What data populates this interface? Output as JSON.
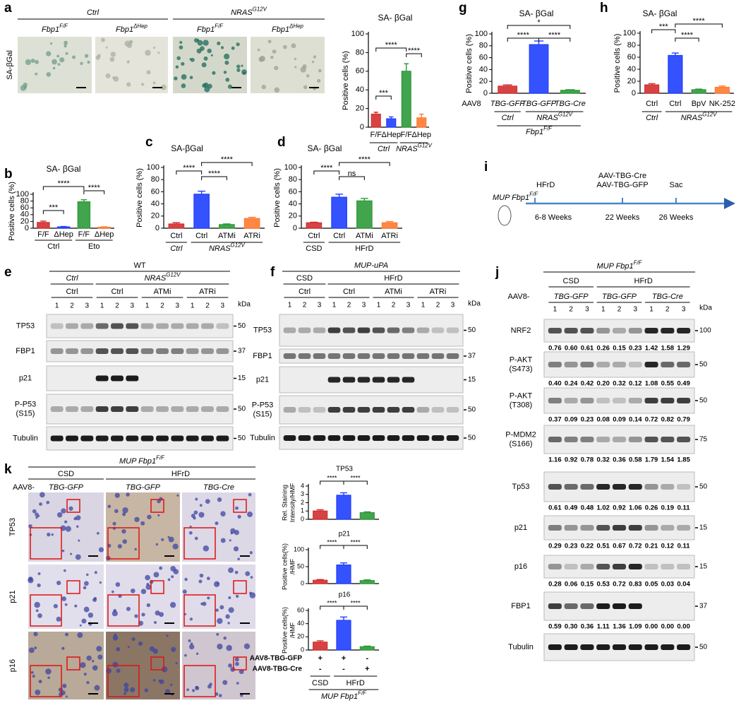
{
  "chart_data": [
    {
      "type": "bar",
      "title": "SA- βGal",
      "ylabel": [
        "Positive cells (%)"
      ],
      "categories": [
        "F/F",
        "ΔHep",
        "F/F",
        "ΔHep"
      ],
      "values": [
        14,
        9,
        60,
        10
      ],
      "errors": [
        2,
        2,
        8,
        4
      ],
      "colors": [
        "#d32f2f",
        "#1f3fff",
        "#2e9a3a",
        "#ff7a30"
      ],
      "ylim": [
        0,
        100
      ],
      "yticks": [
        0,
        20,
        40,
        60,
        80,
        100
      ],
      "groups": [
        {
          "text": "Ctrl",
          "italic": true
        },
        {
          "text": "NRAS",
          "sup": "G12V",
          "italic": true
        }
      ],
      "significance": [
        "****",
        "****",
        "***"
      ]
    },
    {
      "type": "bar",
      "title": "SA- βGal",
      "ylabel": [
        "Positive cells (%)"
      ],
      "categories": [
        "F/F",
        "ΔHep",
        "F/F",
        "ΔHep"
      ],
      "values": [
        17,
        4,
        78,
        3
      ],
      "errors": [
        4,
        1,
        6,
        1
      ],
      "colors": [
        "#d32f2f",
        "#1f3fff",
        "#2e9a3a",
        "#ff7a30"
      ],
      "ylim": [
        0,
        100
      ],
      "yticks": [
        0,
        20,
        40,
        60,
        80,
        100
      ],
      "groups": [
        "Ctrl",
        "Eto"
      ],
      "significance": [
        "****",
        "***",
        "****"
      ]
    },
    {
      "type": "bar",
      "title": "SA-βGal",
      "ylabel": [
        "Positive cells (%)"
      ],
      "categories": [
        "Ctrl",
        "Ctrl",
        "ATMi",
        "ATRi"
      ],
      "values": [
        7,
        56,
        6,
        16
      ],
      "errors": [
        2,
        5,
        1,
        2
      ],
      "colors": [
        "#d32f2f",
        "#1f3fff",
        "#2e9a3a",
        "#ff7a30"
      ],
      "ylim": [
        0,
        100
      ],
      "yticks": [
        0,
        20,
        40,
        60,
        80,
        100
      ],
      "groups": [
        {
          "text": "Ctrl",
          "italic": true
        },
        {
          "text": "NRAS",
          "sup": "G12V",
          "italic": true
        }
      ],
      "significance": [
        "****",
        "****",
        "****"
      ]
    },
    {
      "type": "bar",
      "title": "SA- βGal",
      "ylabel": [
        "Positive cells (%)"
      ],
      "categories": [
        "Ctrl",
        "Ctrl",
        "ATMi",
        "ATRi"
      ],
      "values": [
        9,
        51,
        45,
        9
      ],
      "errors": [
        1,
        5,
        4,
        2
      ],
      "colors": [
        "#d32f2f",
        "#1f3fff",
        "#2e9a3a",
        "#ff7a30"
      ],
      "ylim": [
        0,
        100
      ],
      "yticks": [
        0,
        20,
        40,
        60,
        80,
        100
      ],
      "groups": [
        "CSD",
        "HFrD"
      ],
      "significance": [
        "****",
        "ns",
        "****"
      ]
    },
    {
      "type": "bar",
      "title": "SA- βGal",
      "ylabel": [
        "Positive cells (%)"
      ],
      "row_label": "AAV8",
      "categories": [
        "TBG-GFP",
        "TBG-GFP",
        "TBG-Cre"
      ],
      "italic_categories": true,
      "values": [
        12,
        82,
        5
      ],
      "errors": [
        2,
        6,
        1
      ],
      "colors": [
        "#d32f2f",
        "#1f3fff",
        "#2e9a3a"
      ],
      "ylim": [
        0,
        100
      ],
      "yticks": [
        0,
        20,
        40,
        60,
        80,
        100
      ],
      "groups": [
        {
          "text": "Ctrl",
          "italic": true
        },
        {
          "text": "NRAS",
          "sup": "G12V",
          "italic": true
        }
      ],
      "genotype": {
        "text": "Fbp1",
        "sup": "F/F",
        "italic": true
      },
      "significance": [
        "*",
        "****",
        "****"
      ]
    },
    {
      "type": "bar",
      "title": "SA- βGal",
      "ylabel": [
        "Positive cells (%)"
      ],
      "categories": [
        "Ctrl",
        "Ctrl",
        "BpV",
        "NK-252"
      ],
      "values": [
        14,
        63,
        6,
        10
      ],
      "errors": [
        2,
        4,
        1,
        2
      ],
      "colors": [
        "#d32f2f",
        "#1f3fff",
        "#2e9a3a",
        "#ff7a30"
      ],
      "ylim": [
        0,
        100
      ],
      "yticks": [
        0,
        20,
        40,
        60,
        80,
        100
      ],
      "groups": [
        {
          "text": "Ctrl",
          "italic": true
        },
        {
          "text": "NRAS",
          "sup": "G12V",
          "italic": true
        }
      ],
      "significance": [
        "***",
        "****",
        "****"
      ]
    },
    {
      "type": "bar",
      "title": "TP53",
      "ylabel": [
        "Rel. Staining",
        "Intensity/HMF"
      ],
      "categories": [
        null,
        null,
        null
      ],
      "values": [
        1,
        2.9,
        0.8
      ],
      "errors": [
        0.15,
        0.3,
        0.1
      ],
      "colors": [
        "#d32f2f",
        "#1f3fff",
        "#2e9a3a"
      ],
      "ylim": [
        0,
        4
      ],
      "yticks": [
        0,
        1,
        2,
        3,
        4
      ],
      "significance": [
        "****",
        "****"
      ]
    },
    {
      "type": "bar",
      "title": "p21",
      "ylabel": [
        "Positive cells(%)",
        "/HMF"
      ],
      "categories": [
        null,
        null,
        null
      ],
      "values": [
        10,
        55,
        9
      ],
      "errors": [
        2,
        6,
        2
      ],
      "colors": [
        "#d32f2f",
        "#1f3fff",
        "#2e9a3a"
      ],
      "ylim": [
        0,
        100
      ],
      "yticks": [
        0,
        50,
        100
      ],
      "significance": [
        "****",
        "****"
      ]
    },
    {
      "type": "bar",
      "title": "p16",
      "ylabel": [
        "Positive cells(%)",
        "/HMF"
      ],
      "categories": [
        null,
        null,
        null
      ],
      "values": [
        12,
        45,
        5
      ],
      "errors": [
        2,
        5,
        1
      ],
      "colors": [
        "#d32f2f",
        "#1f3fff",
        "#2e9a3a"
      ],
      "ylim": [
        0,
        60
      ],
      "yticks": [
        0,
        20,
        40,
        60
      ],
      "significance": [
        "****",
        "****"
      ]
    }
  ],
  "panels": {
    "a": {
      "letter": "a",
      "row_label": "SA-βGal",
      "groups": [
        {
          "text": "Ctrl",
          "italic": true
        },
        {
          "text": "NRAS",
          "sup": "G12V",
          "italic": true
        }
      ],
      "genotypes": [
        {
          "text": "Fbp1",
          "sup": "F/F",
          "italic": true
        },
        {
          "text": "Fbp1",
          "sup": "ΔHep",
          "italic": true
        },
        {
          "text": "Fbp1",
          "sup": "F/F",
          "italic": true
        },
        {
          "text": "Fbp1",
          "sup": "ΔHep",
          "italic": true
        }
      ]
    },
    "b": {
      "letter": "b"
    },
    "c": {
      "letter": "c"
    },
    "d": {
      "letter": "d"
    },
    "e": {
      "letter": "e",
      "title": "WT",
      "groups": [
        {
          "text": "Ctrl",
          "italic": true
        },
        {
          "text": "NRAS",
          "sup": "G12V",
          "italic": true
        }
      ],
      "treatments": [
        "Ctrl",
        "Ctrl",
        "ATMi",
        "ATRi"
      ],
      "lanes": [
        1,
        2,
        3
      ],
      "kda_label": "kDa",
      "rows": [
        {
          "label": [
            "TP53"
          ],
          "kda": 50
        },
        {
          "label": [
            "FBP1"
          ],
          "kda": 37
        },
        {
          "label": [
            "p21"
          ],
          "kda": 15
        },
        {
          "label": [
            "P-P53",
            "(S15)"
          ],
          "kda": 50
        },
        {
          "label": [
            "Tubulin"
          ],
          "kda": 50
        }
      ]
    },
    "f": {
      "letter": "f",
      "title": {
        "text": "MUP-uPA",
        "italic": true
      },
      "groups": [
        "CSD",
        "HFrD"
      ],
      "treatments": [
        "Ctrl",
        "Ctrl",
        "ATMi",
        "ATRi"
      ],
      "lanes": [
        1,
        2,
        3
      ],
      "kda_label": "kDa",
      "rows": [
        {
          "label": [
            "TP53"
          ],
          "kda": 50
        },
        {
          "label": [
            "FBP1"
          ],
          "kda": 37
        },
        {
          "label": [
            "p21"
          ],
          "kda": 15
        },
        {
          "label": [
            "P-P53",
            "(S15)"
          ],
          "kda": 50
        },
        {
          "label": [
            "Tubulin"
          ],
          "kda": 50
        }
      ]
    },
    "g": {
      "letter": "g"
    },
    "h": {
      "letter": "h"
    },
    "i": {
      "letter": "i",
      "strain": {
        "text": "MUP Fbp1",
        "sup": "F/F",
        "italic": true
      },
      "events": [
        {
          "top": [
            "HFrD"
          ],
          "bottom": "6-8 Weeks"
        },
        {
          "top": [
            "AAV-TBG-Cre",
            "AAV-TBG-GFP"
          ],
          "bottom": "22 Weeks"
        },
        {
          "top": [
            "Sac"
          ],
          "bottom": "26 Weeks"
        }
      ]
    },
    "j": {
      "letter": "j",
      "title": {
        "text": "MUP Fbp1",
        "sup": "F/F",
        "italic": true
      },
      "conditions": [
        "CSD",
        "HFrD"
      ],
      "vector": "AAV8-",
      "treatments": [
        {
          "text": "TBG-GFP",
          "italic": true
        },
        {
          "text": "TBG-GFP",
          "italic": true
        },
        {
          "text": "TBG-Cre",
          "italic": true
        }
      ],
      "lanes": [
        1,
        2,
        3
      ],
      "kda_label": "kDa",
      "highlight_color": "#e8131b",
      "rows": [
        {
          "label": [
            "NRF2"
          ],
          "kda": 100,
          "quant": [
            "0.76",
            "0.60",
            "0.61",
            "0.26",
            "0.15",
            "0.23",
            "1.42",
            "1.58",
            "1.29"
          ]
        },
        {
          "label": [
            "P-AKT",
            "(S473)"
          ],
          "kda": 50,
          "quant": [
            "0.40",
            "0.24",
            "0.42",
            "0.20",
            "0.32",
            "0.12",
            "1.08",
            "0.55",
            "0.49"
          ]
        },
        {
          "label": [
            "P-AKT",
            "(T308)"
          ],
          "kda": 50,
          "quant": [
            "0.37",
            "0.09",
            "0.23",
            "0.08",
            "0.09",
            "0.14",
            "0.72",
            "0.82",
            "0.79"
          ]
        },
        {
          "label": [
            "P-MDM2",
            "(S166)"
          ],
          "kda": 75,
          "quant": [
            "1.16",
            "0.92",
            "0.78",
            "0.32",
            "0.36",
            "0.58",
            "1.79",
            "1.54",
            "1.85"
          ]
        },
        {
          "label": [
            "Tp53"
          ],
          "kda": 50,
          "quant": [
            "0.61",
            "0.49",
            "0.48",
            "1.02",
            "0.92",
            "1.06",
            "0.26",
            "0.19",
            "0.11"
          ]
        },
        {
          "label": [
            "p21"
          ],
          "kda": 15,
          "quant": [
            "0.29",
            "0.23",
            "0.22",
            "0.51",
            "0.67",
            "0.72",
            "0.21",
            "0.12",
            "0.11"
          ]
        },
        {
          "label": [
            "p16"
          ],
          "kda": 15,
          "quant": [
            "0.28",
            "0.06",
            "0.15",
            "0.53",
            "0.72",
            "0.83",
            "0.05",
            "0.03",
            "0.04"
          ]
        },
        {
          "label": [
            "FBP1"
          ],
          "kda": 37,
          "quant": [
            "0.59",
            "0.30",
            "0.36",
            "1.11",
            "1.36",
            "1.09",
            "0.00",
            "0.00",
            "0.00"
          ]
        },
        {
          "label": [
            "Tubulin"
          ],
          "kda": 50
        }
      ]
    },
    "k": {
      "letter": "k",
      "title": {
        "text": "MUP Fbp1",
        "sup": "F/F",
        "italic": true
      },
      "conditions": [
        "CSD",
        "HFrD"
      ],
      "vector": "AAV8-",
      "treatments": [
        {
          "text": "TBG-GFP",
          "italic": true
        },
        {
          "text": "TBG-GFP",
          "italic": true
        },
        {
          "text": "TBG-Cre",
          "italic": true
        }
      ],
      "rows": [
        "TP53",
        "p21",
        "p16"
      ],
      "table": {
        "rows": [
          {
            "label": "AAV8-TBG-GFP",
            "marks": [
              "+",
              "+",
              "-"
            ]
          },
          {
            "label": "AAV8-TBG-Cre",
            "marks": [
              "-",
              "-",
              "+"
            ]
          }
        ],
        "groups": [
          "CSD",
          "HFrD"
        ],
        "strain": {
          "text": "MUP Fbp1",
          "sup": "F/F",
          "italic": true
        }
      }
    }
  }
}
